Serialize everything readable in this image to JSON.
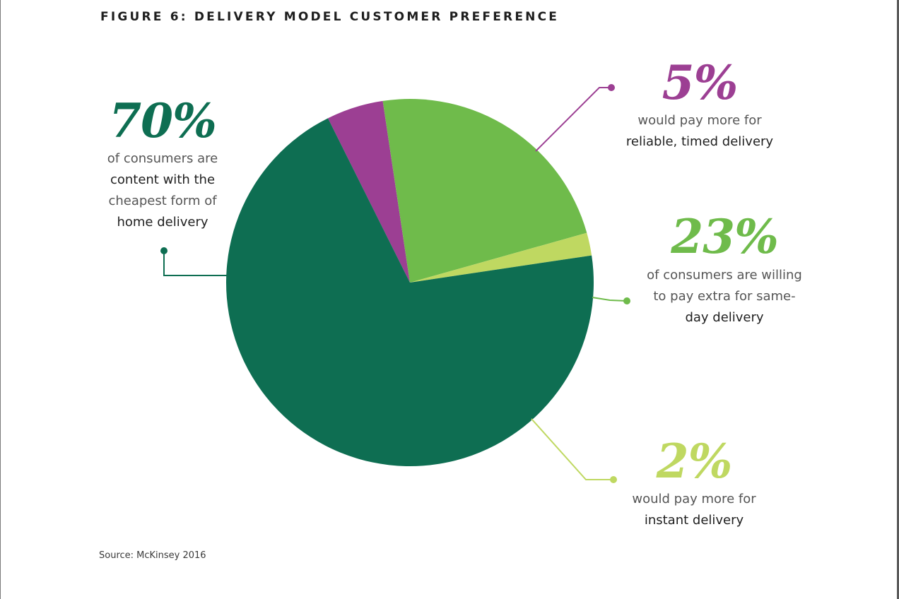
{
  "title": "FIGURE 6: DELIVERY MODEL CUSTOMER PREFERENCE",
  "source": "Source: McKinsey 2016",
  "chart_data": {
    "type": "pie",
    "title": "FIGURE 6: DELIVERY MODEL CUSTOMER PREFERENCE",
    "slices": [
      {
        "key": "s70",
        "value": 70,
        "color": "#0e6e52"
      },
      {
        "key": "s5",
        "value": 5,
        "color": "#9c3f93"
      },
      {
        "key": "s23",
        "value": 23,
        "color": "#6fbb4b"
      },
      {
        "key": "s2",
        "value": 2,
        "color": "#bfd861"
      }
    ]
  },
  "callouts": {
    "c70": {
      "pct": "70%",
      "line1": "of consumers are",
      "line2": "content with the",
      "line3": "cheapest form of",
      "line4": "home delivery"
    },
    "c5": {
      "pct": "5%",
      "line1": "would pay more for",
      "line2": "reliable, timed delivery"
    },
    "c23": {
      "pct": "23%",
      "line1": "of consumers are willing",
      "line2": "to pay extra for same-",
      "line3": "day delivery"
    },
    "c2": {
      "pct": "2%",
      "line1": "would pay more for",
      "line2": "instant delivery"
    }
  }
}
